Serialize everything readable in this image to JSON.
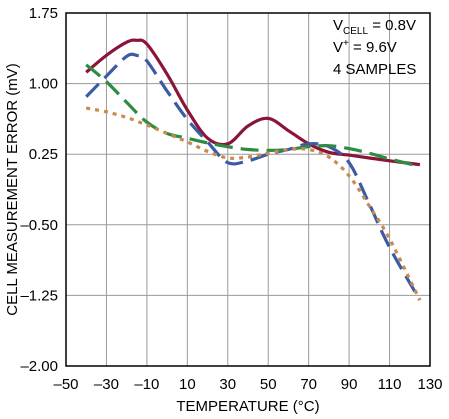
{
  "chart_data": {
    "type": "line",
    "title": "",
    "xlabel": "TEMPERATURE (°C)",
    "ylabel": "CELL MEASUREMENT ERROR (mV)",
    "xlim": [
      -50,
      130
    ],
    "ylim": [
      -2.0,
      1.75
    ],
    "grid": true,
    "x_ticks": [
      -50,
      -30,
      -10,
      10,
      30,
      50,
      70,
      90,
      110,
      130
    ],
    "x_tick_labels": [
      "–50",
      "–30",
      "–10",
      "10",
      "30",
      "50",
      "70",
      "90",
      "110",
      "130"
    ],
    "y_ticks": [
      1.75,
      1.0,
      0.25,
      -0.5,
      -1.25,
      -2.0
    ],
    "y_tick_labels": [
      "1.75",
      "1.00",
      "0.25",
      "–0.50",
      "–1.25",
      "–2.00"
    ],
    "annotation": {
      "line1_main": "V",
      "line1_sub": "CELL",
      "line1_rest": " = 0.8V",
      "line2_main": "V",
      "line2_sup": "+",
      "line2_rest": " = 9.6V",
      "line3": "4 SAMPLES"
    },
    "series": [
      {
        "color": "#8b1538",
        "style": "solid",
        "x": [
          -40,
          -30,
          -20,
          -15,
          -10,
          0,
          10,
          20,
          30,
          40,
          50,
          60,
          70,
          80,
          90,
          100,
          110,
          125
        ],
        "y": [
          1.12,
          1.3,
          1.44,
          1.46,
          1.42,
          1.1,
          0.72,
          0.42,
          0.36,
          0.55,
          0.63,
          0.5,
          0.36,
          0.27,
          0.24,
          0.21,
          0.18,
          0.14
        ]
      },
      {
        "color": "#3b5ba5",
        "style": "dashed",
        "x": [
          -40,
          -30,
          -20,
          -15,
          -10,
          0,
          10,
          20,
          30,
          40,
          50,
          60,
          70,
          80,
          90,
          100,
          110,
          125
        ],
        "y": [
          0.86,
          1.08,
          1.29,
          1.3,
          1.24,
          0.92,
          0.62,
          0.38,
          0.16,
          0.18,
          0.25,
          0.3,
          0.36,
          0.33,
          0.16,
          -0.28,
          -0.74,
          -1.3
        ]
      },
      {
        "color": "#2e8b44",
        "style": "dashed",
        "x": [
          -40,
          -30,
          -20,
          -10,
          0,
          10,
          20,
          30,
          40,
          50,
          60,
          70,
          80,
          90,
          100,
          110,
          125
        ],
        "y": [
          1.2,
          1.02,
          0.8,
          0.59,
          0.47,
          0.42,
          0.37,
          0.33,
          0.3,
          0.29,
          0.3,
          0.33,
          0.34,
          0.31,
          0.26,
          0.2,
          0.12
        ]
      },
      {
        "color": "#c88a4e",
        "style": "dotted",
        "x": [
          -40,
          -30,
          -20,
          -10,
          0,
          10,
          20,
          30,
          40,
          50,
          60,
          70,
          80,
          90,
          100,
          110,
          125
        ],
        "y": [
          0.74,
          0.7,
          0.64,
          0.56,
          0.47,
          0.38,
          0.28,
          0.21,
          0.22,
          0.26,
          0.3,
          0.3,
          0.22,
          0.02,
          -0.3,
          -0.65,
          -1.3
        ]
      }
    ]
  }
}
